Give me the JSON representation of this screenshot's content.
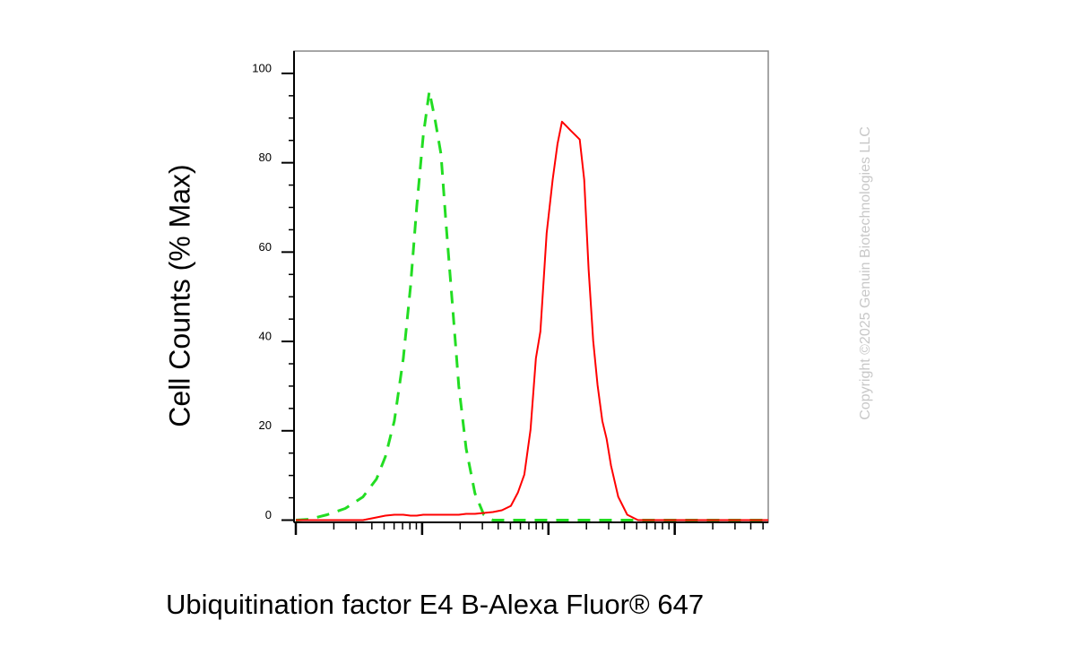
{
  "chart_data": {
    "type": "line",
    "ylabel": "Cell Counts (% Max)",
    "xlabel": "Ubiquitination factor E4 B-Alexa Fluor® 647",
    "watermark": "Copyright ©2025 Genuin Biotechnologies LLC",
    "xscale": "log",
    "xlim": [
      1,
      5500
    ],
    "xticks": [
      1,
      10,
      100,
      1000
    ],
    "xminorticks": [
      2,
      3,
      4,
      5,
      6,
      7,
      8,
      9,
      20,
      30,
      40,
      50,
      60,
      70,
      80,
      90,
      200,
      300,
      400,
      500,
      600,
      700,
      800,
      900,
      2000,
      3000,
      4000,
      5000
    ],
    "ylim": [
      -0.5,
      105
    ],
    "yticks": [
      0,
      20,
      40,
      60,
      80,
      100
    ],
    "yminorticks": [
      5,
      10,
      15,
      25,
      30,
      35,
      45,
      50,
      55,
      65,
      70,
      75,
      85,
      90,
      95
    ],
    "x": [
      1,
      1.28,
      1.77,
      2.46,
      3.4,
      4.35,
      5.12,
      6.03,
      7.1,
      8.09,
      9.07,
      10.2,
      11.4,
      12.6,
      14.1,
      15.5,
      17.4,
      19.5,
      22.3,
      26.2,
      30.8,
      36.3,
      42.8,
      50.4,
      57.4,
      64.4,
      72.1,
      79.6,
      86.3,
      96.8,
      108,
      118,
      128,
      139,
      150,
      163,
      177,
      192,
      208,
      226,
      245,
      267,
      289,
      313,
      357,
      421,
      512,
      687,
      1122,
      2153,
      5500
    ],
    "series": [
      {
        "color": "#22dd22",
        "dash": true,
        "values": [
          0,
          0.2,
          1.2,
          2.6,
          5.2,
          9.2,
          14.2,
          22.2,
          36.2,
          52.2,
          70.2,
          86,
          96,
          90,
          82,
          66,
          48,
          30,
          16,
          6,
          1.2,
          0,
          0,
          0,
          0,
          0,
          0,
          0,
          0,
          0,
          0,
          0,
          0,
          0,
          0,
          0,
          0,
          0,
          0,
          0,
          0,
          0,
          0,
          0,
          0,
          0,
          0,
          0,
          0,
          0,
          0
        ]
      },
      {
        "color": "#ff0000",
        "dash": false,
        "values": [
          0,
          0,
          0,
          0,
          0,
          0.6,
          1,
          1.2,
          1.2,
          1,
          1,
          1.2,
          1.2,
          1.2,
          1.2,
          1.2,
          1.2,
          1.2,
          1.4,
          1.4,
          1.6,
          1.8,
          2.2,
          3.2,
          6.2,
          10.2,
          20.2,
          36.2,
          42.2,
          64.2,
          76.2,
          84.2,
          89.2,
          88.2,
          87.2,
          86.2,
          85.2,
          76.2,
          56.2,
          40.2,
          30.2,
          22.2,
          18.2,
          12.2,
          5.2,
          1.2,
          0,
          0,
          0,
          0,
          0
        ]
      }
    ]
  }
}
